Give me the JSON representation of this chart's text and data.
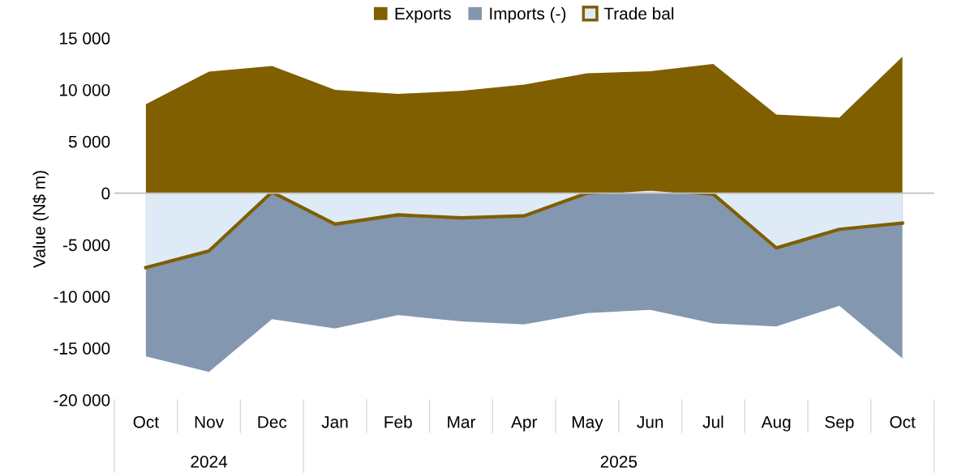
{
  "chart_data": {
    "type": "area",
    "ylabel": "Value (N$ m)",
    "categories": [
      "Oct",
      "Nov",
      "Dec",
      "Jan",
      "Feb",
      "Mar",
      "Apr",
      "May",
      "Jun",
      "Jul",
      "Aug",
      "Sep",
      "Oct"
    ],
    "series": [
      {
        "name": "Exports",
        "color": "#7f5f00",
        "values": [
          8600,
          11750,
          12300,
          10000,
          9600,
          9900,
          10500,
          11600,
          11800,
          12500,
          7600,
          7300,
          13200
        ]
      },
      {
        "name": "Imports (-)",
        "color": "#8497b0",
        "values": [
          -15800,
          -17300,
          -12200,
          -13100,
          -11800,
          -12400,
          -12700,
          -11600,
          -11300,
          -12600,
          -12900,
          -10900,
          -16000
        ]
      },
      {
        "name": "Trade bal",
        "color": "#7f5f00",
        "type": "line",
        "values": [
          -7200,
          -5600,
          100,
          -3000,
          -2100,
          -2400,
          -2200,
          0,
          400,
          -100,
          -5300,
          -3500,
          -2900
        ]
      }
    ],
    "ylim": [
      -20000,
      15000
    ],
    "yticks": [
      {
        "value": -20000,
        "label": "-20 000"
      },
      {
        "value": -15000,
        "label": "-15 000"
      },
      {
        "value": -10000,
        "label": "-10 000"
      },
      {
        "value": -5000,
        "label": "-5 000"
      },
      {
        "value": 0,
        "label": "0"
      },
      {
        "value": 5000,
        "label": "5 000"
      },
      {
        "value": 10000,
        "label": "10 000"
      },
      {
        "value": 15000,
        "label": "15 000"
      }
    ],
    "annotations": [
      "2024",
      "2025"
    ],
    "ref_lines": [
      {
        "axis": "y",
        "value": 0,
        "color": "#bfbfbf"
      }
    ],
    "legend": "top",
    "grid": false
  }
}
